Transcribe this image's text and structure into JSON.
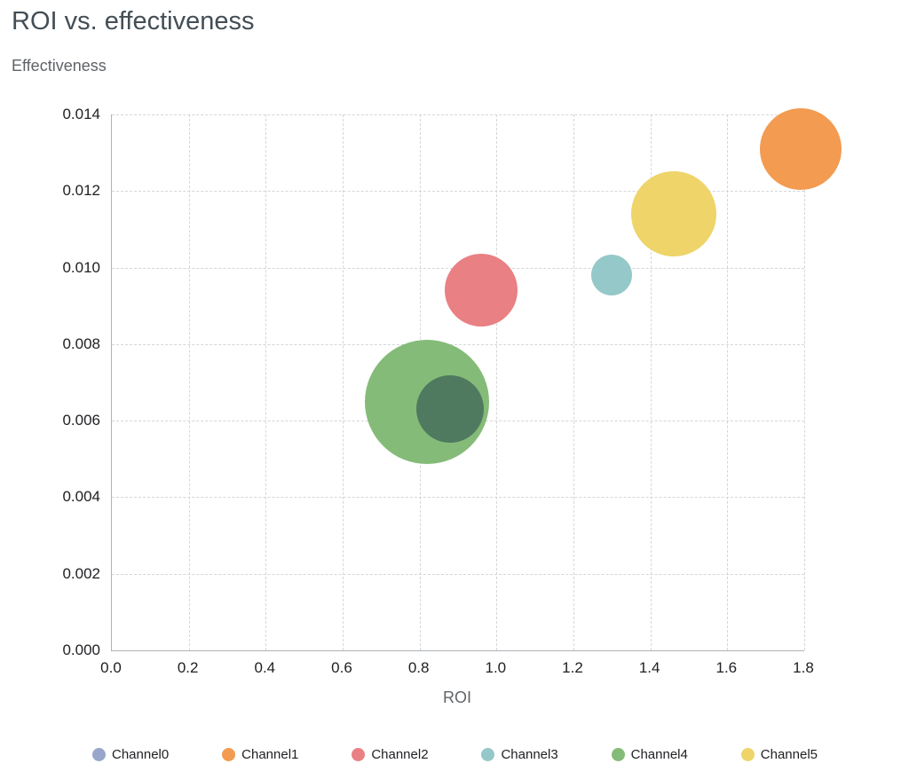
{
  "chart_data": {
    "type": "scatter",
    "subtype": "bubble",
    "title": "ROI vs. effectiveness",
    "xlabel": "ROI",
    "ylabel": "Effectiveness",
    "xlim": [
      0,
      1.8
    ],
    "ylim": [
      0,
      0.014
    ],
    "grid": "dashed",
    "legend_position": "bottom",
    "x_ticks": [
      0,
      0.2,
      0.4,
      0.6,
      0.8,
      1.0,
      1.2,
      1.4,
      1.6,
      1.8
    ],
    "x_tick_labels": [
      "0.0",
      "0.2",
      "0.4",
      "0.6",
      "0.8",
      "1.0",
      "1.2",
      "1.4",
      "1.6",
      "1.8"
    ],
    "y_ticks": [
      0,
      0.002,
      0.004,
      0.006,
      0.008,
      0.01,
      0.012,
      0.014
    ],
    "y_tick_labels": [
      "0.000",
      "0.002",
      "0.004",
      "0.006",
      "0.008",
      "0.010",
      "0.012",
      "0.014"
    ],
    "series": [
      {
        "name": "Channel0",
        "color": "#98a6cb",
        "x": 0.88,
        "y": 0.0063,
        "radius_px": 38
      },
      {
        "name": "Channel1",
        "color": "#f29b51",
        "x": 1.79,
        "y": 0.0131,
        "radius_px": 46
      },
      {
        "name": "Channel2",
        "color": "#e98083",
        "x": 0.96,
        "y": 0.0094,
        "radius_px": 41
      },
      {
        "name": "Channel3",
        "color": "#95c8c8",
        "x": 1.3,
        "y": 0.0098,
        "radius_px": 23
      },
      {
        "name": "Channel4",
        "color": "#84bb78",
        "x": 0.82,
        "y": 0.0065,
        "radius_px": 70
      },
      {
        "name": "Channel5",
        "color": "#eed469",
        "x": 1.46,
        "y": 0.0114,
        "radius_px": 48
      }
    ]
  }
}
